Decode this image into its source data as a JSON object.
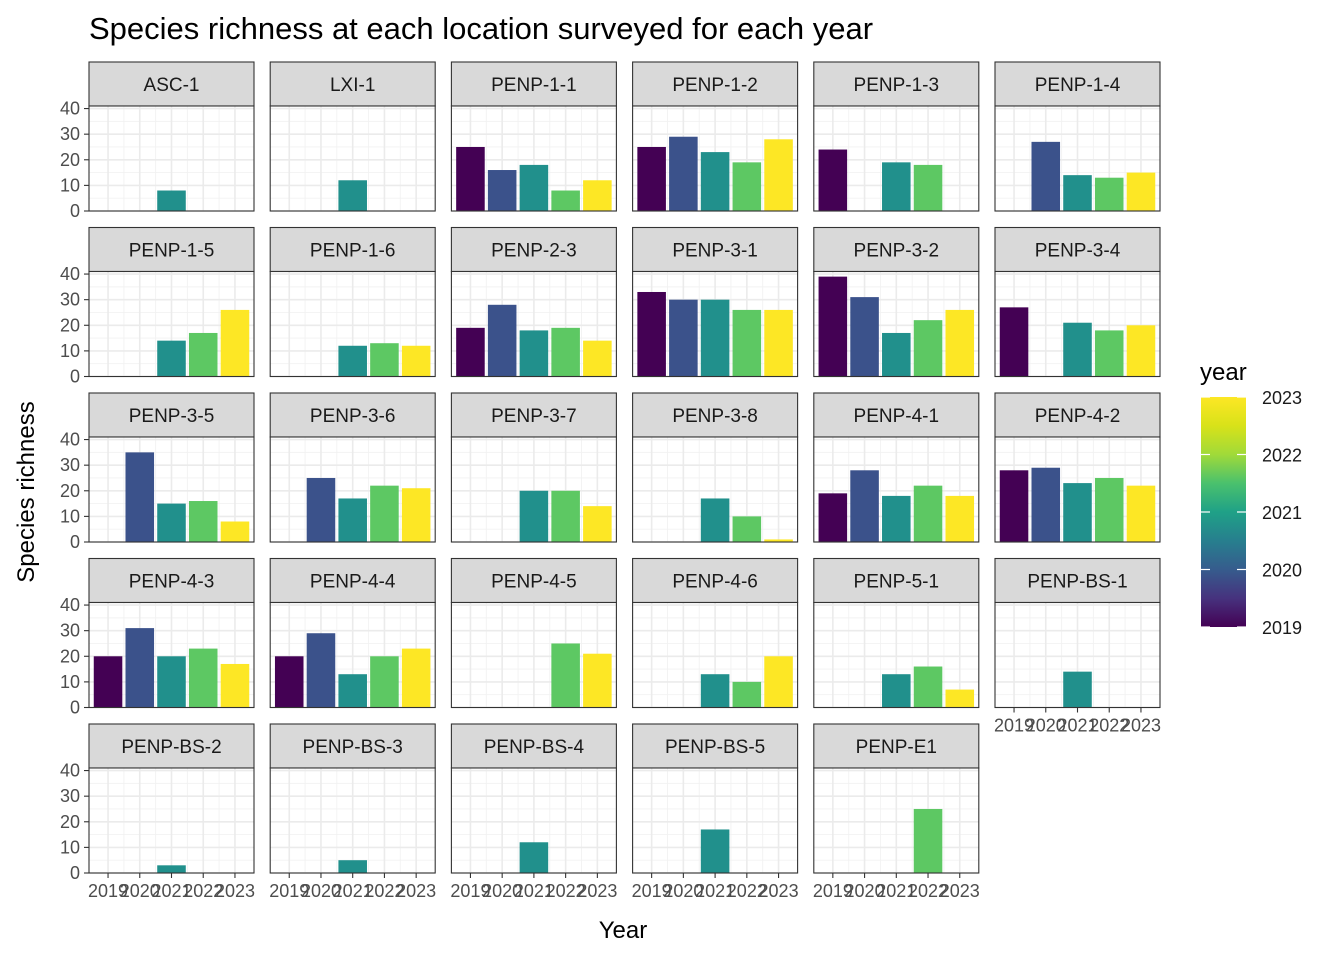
{
  "chart_data": {
    "type": "bar",
    "title": "Species richness at each location surveyed for each year",
    "xlabel": "Year",
    "ylabel": "Species richness",
    "x_categories": [
      "2019",
      "2020",
      "2021",
      "2022",
      "2023"
    ],
    "y_ticks": [
      "0",
      "10",
      "20",
      "30",
      "40"
    ],
    "ylim": [
      0,
      41
    ],
    "grid": true,
    "legend": {
      "title": "year",
      "position": "right",
      "type": "colorbar",
      "ticks": [
        "2019",
        "2020",
        "2021",
        "2022",
        "2023"
      ],
      "palette": "viridis"
    },
    "year_colors": {
      "2019": "#440154",
      "2020": "#3B528B",
      "2021": "#21908C",
      "2022": "#5DC863",
      "2023": "#FDE725"
    },
    "ncol": 6,
    "panels": [
      {
        "name": "ASC-1",
        "values": [
          null,
          null,
          8,
          null,
          null
        ]
      },
      {
        "name": "LXI-1",
        "values": [
          null,
          null,
          12,
          null,
          null
        ]
      },
      {
        "name": "PENP-1-1",
        "values": [
          25,
          16,
          18,
          8,
          12
        ]
      },
      {
        "name": "PENP-1-2",
        "values": [
          25,
          29,
          23,
          19,
          28
        ]
      },
      {
        "name": "PENP-1-3",
        "values": [
          24,
          null,
          19,
          18,
          null
        ]
      },
      {
        "name": "PENP-1-4",
        "values": [
          null,
          27,
          14,
          13,
          15
        ]
      },
      {
        "name": "PENP-1-5",
        "values": [
          null,
          null,
          14,
          17,
          26
        ]
      },
      {
        "name": "PENP-1-6",
        "values": [
          null,
          null,
          12,
          13,
          12
        ]
      },
      {
        "name": "PENP-2-3",
        "values": [
          19,
          28,
          18,
          19,
          14
        ]
      },
      {
        "name": "PENP-3-1",
        "values": [
          33,
          30,
          30,
          26,
          26
        ]
      },
      {
        "name": "PENP-3-2",
        "values": [
          39,
          31,
          17,
          22,
          26
        ]
      },
      {
        "name": "PENP-3-4",
        "values": [
          27,
          null,
          21,
          18,
          20
        ]
      },
      {
        "name": "PENP-3-5",
        "values": [
          null,
          35,
          15,
          16,
          8
        ]
      },
      {
        "name": "PENP-3-6",
        "values": [
          null,
          25,
          17,
          22,
          21
        ]
      },
      {
        "name": "PENP-3-7",
        "values": [
          null,
          null,
          20,
          20,
          14
        ]
      },
      {
        "name": "PENP-3-8",
        "values": [
          null,
          null,
          17,
          10,
          1
        ]
      },
      {
        "name": "PENP-4-1",
        "values": [
          19,
          28,
          18,
          22,
          18
        ]
      },
      {
        "name": "PENP-4-2",
        "values": [
          28,
          29,
          23,
          25,
          22
        ]
      },
      {
        "name": "PENP-4-3",
        "values": [
          20,
          31,
          20,
          23,
          17
        ]
      },
      {
        "name": "PENP-4-4",
        "values": [
          20,
          29,
          13,
          20,
          23
        ]
      },
      {
        "name": "PENP-4-5",
        "values": [
          null,
          null,
          null,
          25,
          21
        ]
      },
      {
        "name": "PENP-4-6",
        "values": [
          null,
          null,
          13,
          10,
          20
        ]
      },
      {
        "name": "PENP-5-1",
        "values": [
          null,
          null,
          13,
          16,
          7
        ]
      },
      {
        "name": "PENP-BS-1",
        "values": [
          null,
          null,
          14,
          null,
          null
        ]
      },
      {
        "name": "PENP-BS-2",
        "values": [
          null,
          null,
          3,
          null,
          null
        ]
      },
      {
        "name": "PENP-BS-3",
        "values": [
          null,
          null,
          5,
          null,
          null
        ]
      },
      {
        "name": "PENP-BS-4",
        "values": [
          null,
          null,
          12,
          null,
          null
        ]
      },
      {
        "name": "PENP-BS-5",
        "values": [
          null,
          null,
          17,
          null,
          null
        ]
      },
      {
        "name": "PENP-E1",
        "values": [
          null,
          null,
          null,
          25,
          null
        ]
      }
    ]
  }
}
